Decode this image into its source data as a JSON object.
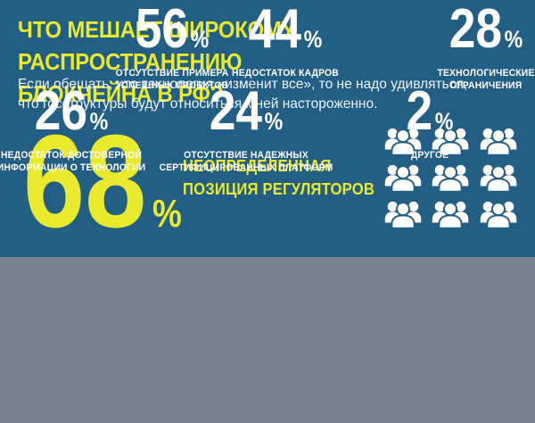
{
  "theme": {
    "blue": "#235E85",
    "gray": "#76838F",
    "yellow": "#E9E92D",
    "text_light": "#EDF3F7",
    "white": "#FFFFFF"
  },
  "header": {
    "title": "ЧТО МЕШАЕТ ШИРОКОМУ РАСПРОСТРАНЕНИЮ\nБЛОКЧЕЙНА В РФ?",
    "subtitle": "Если обещать, что технология «изменит все», то не надо удивляться,\nчто госструктуры будут относиться к ней настороженно."
  },
  "units": {
    "percent": "%"
  },
  "main_stat": {
    "value": "68",
    "label": "НЕОПРЕДЕЛЕННАЯ\nПОЗИЦИЯ РЕГУЛЯТОРОВ",
    "icon": "people-group-icon",
    "icon_rows": 3,
    "icon_cols": 3
  },
  "stats": [
    {
      "value": "56",
      "label": "ОТСУТСТВИЕ ПРИМЕРА\nУСПЕШНЫХ ПРОЕКТОВ"
    },
    {
      "value": "44",
      "label": "НЕДОСТАТОК КАДРОВ"
    },
    {
      "value": "28",
      "label": "ТЕХНОЛОГИЧЕСКИЕ\nОГРАНИЧЕНИЯ"
    },
    {
      "value": "26",
      "label": "НЕДОСТАТОК ДОСТОВЕРНОЙ\nИНФОРМАЦИИ О ТЕХНОЛОГИИ"
    },
    {
      "value": "24",
      "label": "ОТСУТСТВИЕ НАДЕЖНЫХ\nСЕРТИФИЦИРОВАННЫХ ПЛАТФОРМ"
    },
    {
      "value": "2",
      "label": "ДРУГОЕ"
    }
  ],
  "chart_data": {
    "type": "table",
    "title": "ЧТО МЕШАЕТ ШИРОКОМУ РАСПРОСТРАНЕНИЮ БЛОКЧЕЙНА В РФ?",
    "subtitle": "Если обещать, что технология «изменит все», то не надо удивляться, что госструктуры будут относиться к ней настороженно.",
    "categories": [
      "НЕОПРЕДЕЛЕННАЯ ПОЗИЦИЯ РЕГУЛЯТОРОВ",
      "ОТСУТСТВИЕ ПРИМЕРА УСПЕШНЫХ ПРОЕКТОВ",
      "НЕДОСТАТОК КАДРОВ",
      "ТЕХНОЛОГИЧЕСКИЕ ОГРАНИЧЕНИЯ",
      "НЕДОСТАТОК ДОСТОВЕРНОЙ ИНФОРМАЦИИ О ТЕХНОЛОГИИ",
      "ОТСУТСТВИЕ НАДЕЖНЫХ СЕРТИФИЦИРОВАННЫХ ПЛАТФОРМ",
      "ДРУГОЕ"
    ],
    "values": [
      68,
      56,
      44,
      28,
      26,
      24,
      2
    ],
    "unit": "%",
    "legend_position": "none",
    "grid": false
  }
}
